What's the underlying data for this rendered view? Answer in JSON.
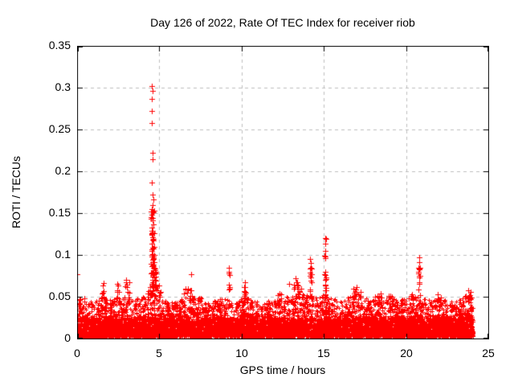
{
  "page": {
    "background": "#ffffff",
    "text_color": "#000000"
  },
  "chart_data": {
    "type": "scatter",
    "title": "Day 126 of 2022, Rate Of TEC Index for receiver riob",
    "xlabel": "GPS time / hours",
    "ylabel": "ROTI / TECUs",
    "xlim": [
      0,
      25
    ],
    "ylim": [
      0,
      0.35
    ],
    "xticks": [
      0,
      5,
      10,
      15,
      20,
      25
    ],
    "xtick_labels": [
      "0",
      "5",
      "10",
      "15",
      "20",
      "25"
    ],
    "yticks": [
      0,
      0.05,
      0.1,
      0.15,
      0.2,
      0.25,
      0.3,
      0.35
    ],
    "ytick_labels": [
      "0",
      "0.05",
      "0.1",
      "0.15",
      "0.2",
      "0.25",
      "0.3",
      "0.35"
    ],
    "grid": {
      "show": true,
      "color": "#bebebe",
      "dash": [
        4,
        4
      ]
    },
    "border_color": "#000000",
    "marker": {
      "shape": "plus",
      "color": "#ff0000"
    },
    "data_x_range": [
      0,
      24.1
    ],
    "seed": 20220126,
    "baseline_band": {
      "count": 6500,
      "y_min": 0.003,
      "shape_power": 2.6,
      "core_count": 3200,
      "core_y_base": 0.005,
      "core_y_spread": 0.02,
      "core_power": 1.4
    },
    "band_profile": [
      [
        0,
        0.042
      ],
      [
        0.5,
        0.046
      ],
      [
        1,
        0.043
      ],
      [
        1.5,
        0.05
      ],
      [
        2,
        0.046
      ],
      [
        2.5,
        0.049
      ],
      [
        3,
        0.05
      ],
      [
        3.5,
        0.047
      ],
      [
        4,
        0.05
      ],
      [
        4.5,
        0.058
      ],
      [
        5,
        0.05
      ],
      [
        5.5,
        0.044
      ],
      [
        6,
        0.046
      ],
      [
        6.5,
        0.05
      ],
      [
        7,
        0.051
      ],
      [
        7.5,
        0.05
      ],
      [
        8,
        0.044
      ],
      [
        8.5,
        0.046
      ],
      [
        9,
        0.05
      ],
      [
        9.5,
        0.046
      ],
      [
        10,
        0.048
      ],
      [
        10.5,
        0.05
      ],
      [
        11,
        0.044
      ],
      [
        11.5,
        0.046
      ],
      [
        12,
        0.045
      ],
      [
        12.5,
        0.048
      ],
      [
        13,
        0.052
      ],
      [
        13.5,
        0.054
      ],
      [
        14,
        0.052
      ],
      [
        14.5,
        0.049
      ],
      [
        15,
        0.053
      ],
      [
        15.5,
        0.048
      ],
      [
        16,
        0.046
      ],
      [
        16.5,
        0.05
      ],
      [
        17,
        0.054
      ],
      [
        17.5,
        0.05
      ],
      [
        18,
        0.048
      ],
      [
        18.5,
        0.05
      ],
      [
        19,
        0.049
      ],
      [
        19.5,
        0.046
      ],
      [
        20,
        0.048
      ],
      [
        20.5,
        0.05
      ],
      [
        21,
        0.049
      ],
      [
        21.5,
        0.046
      ],
      [
        22,
        0.049
      ],
      [
        22.5,
        0.046
      ],
      [
        23,
        0.044
      ],
      [
        23.5,
        0.049
      ],
      [
        24,
        0.052
      ],
      [
        24.1,
        0.05
      ]
    ],
    "clusters": [
      {
        "x": 4.62,
        "sx": 0.2,
        "y0": 0.05,
        "y1": 0.085,
        "n": 40
      },
      {
        "x": 4.6,
        "sx": 0.1,
        "y0": 0.085,
        "y1": 0.155,
        "n": 25
      },
      {
        "x": 15.1,
        "sx": 0.06,
        "y0": 0.05,
        "y1": 0.1,
        "n": 14
      },
      {
        "x": 14.2,
        "sx": 0.06,
        "y0": 0.05,
        "y1": 0.085,
        "n": 12
      },
      {
        "x": 20.8,
        "sx": 0.05,
        "y0": 0.05,
        "y1": 0.09,
        "n": 10
      },
      {
        "x": 13.35,
        "sx": 0.18,
        "y0": 0.048,
        "y1": 0.068,
        "n": 14
      },
      {
        "x": 10.2,
        "sx": 0.08,
        "y0": 0.048,
        "y1": 0.064,
        "n": 8
      },
      {
        "x": 9.25,
        "sx": 0.06,
        "y0": 0.05,
        "y1": 0.082,
        "n": 7
      },
      {
        "x": 6.8,
        "sx": 0.35,
        "y0": 0.046,
        "y1": 0.06,
        "n": 14
      },
      {
        "x": 3.0,
        "sx": 0.2,
        "y0": 0.046,
        "y1": 0.068,
        "n": 10
      },
      {
        "x": 1.6,
        "sx": 0.15,
        "y0": 0.045,
        "y1": 0.064,
        "n": 8
      },
      {
        "x": 2.45,
        "sx": 0.1,
        "y0": 0.045,
        "y1": 0.065,
        "n": 6
      },
      {
        "x": 17.0,
        "sx": 0.25,
        "y0": 0.046,
        "y1": 0.06,
        "n": 12
      },
      {
        "x": 22.0,
        "sx": 0.12,
        "y0": 0.045,
        "y1": 0.057,
        "n": 7
      },
      {
        "x": 23.85,
        "sx": 0.25,
        "y0": 0.044,
        "y1": 0.058,
        "n": 12
      },
      {
        "x": 12.3,
        "sx": 0.15,
        "y0": 0.044,
        "y1": 0.054,
        "n": 6
      },
      {
        "x": 18.3,
        "sx": 0.2,
        "y0": 0.044,
        "y1": 0.055,
        "n": 8
      },
      {
        "x": 19.0,
        "sx": 0.15,
        "y0": 0.044,
        "y1": 0.052,
        "n": 6
      },
      {
        "x": 20.3,
        "sx": 0.15,
        "y0": 0.044,
        "y1": 0.054,
        "n": 6
      },
      {
        "x": 0.3,
        "sx": 0.2,
        "y0": 0.042,
        "y1": 0.05,
        "n": 5
      },
      {
        "x": 5.0,
        "sx": 0.1,
        "y0": 0.05,
        "y1": 0.065,
        "n": 6
      }
    ],
    "outliers": [
      [
        4.55,
        0.302
      ],
      [
        4.58,
        0.296
      ],
      [
        4.55,
        0.287
      ],
      [
        4.52,
        0.272
      ],
      [
        4.53,
        0.258
      ],
      [
        4.57,
        0.222
      ],
      [
        4.58,
        0.214
      ],
      [
        4.52,
        0.187
      ],
      [
        4.6,
        0.172
      ],
      [
        4.62,
        0.166
      ],
      [
        4.58,
        0.16
      ],
      [
        4.55,
        0.155
      ],
      [
        4.62,
        0.151
      ],
      [
        4.55,
        0.148
      ],
      [
        4.5,
        0.145
      ],
      [
        4.58,
        0.141
      ],
      [
        4.63,
        0.137
      ],
      [
        4.55,
        0.133
      ],
      [
        4.6,
        0.129
      ],
      [
        4.52,
        0.125
      ],
      [
        4.57,
        0.121
      ],
      [
        4.62,
        0.117
      ],
      [
        4.55,
        0.113
      ],
      [
        4.6,
        0.109
      ],
      [
        4.53,
        0.105
      ],
      [
        4.58,
        0.101
      ],
      [
        4.65,
        0.098
      ],
      [
        4.6,
        0.094
      ],
      [
        4.68,
        0.091
      ],
      [
        4.62,
        0.088
      ],
      [
        4.7,
        0.085
      ],
      [
        4.65,
        0.082
      ],
      [
        4.72,
        0.079
      ],
      [
        4.6,
        0.076
      ],
      [
        4.68,
        0.073
      ],
      [
        4.75,
        0.07
      ],
      [
        4.65,
        0.067
      ],
      [
        4.78,
        0.064
      ],
      [
        4.85,
        0.061
      ],
      [
        4.9,
        0.058
      ],
      [
        4.42,
        0.062
      ],
      [
        4.35,
        0.057
      ],
      [
        4.3,
        0.054
      ],
      [
        0.02,
        0.077
      ],
      [
        6.95,
        0.077
      ],
      [
        9.22,
        0.085
      ],
      [
        9.25,
        0.08
      ],
      [
        9.27,
        0.076
      ],
      [
        10.2,
        0.067
      ],
      [
        10.22,
        0.062
      ],
      [
        13.3,
        0.072
      ],
      [
        13.35,
        0.067
      ],
      [
        13.25,
        0.062
      ],
      [
        12.9,
        0.065
      ],
      [
        13.6,
        0.06
      ],
      [
        14.18,
        0.095
      ],
      [
        14.2,
        0.09
      ],
      [
        14.22,
        0.085
      ],
      [
        14.17,
        0.079
      ],
      [
        14.2,
        0.073
      ],
      [
        14.24,
        0.067
      ],
      [
        15.08,
        0.12
      ],
      [
        15.12,
        0.119
      ],
      [
        15.1,
        0.113
      ],
      [
        15.11,
        0.105
      ],
      [
        15.09,
        0.096
      ],
      [
        15.1,
        0.08
      ],
      [
        15.12,
        0.071
      ],
      [
        15.08,
        0.064
      ],
      [
        20.78,
        0.097
      ],
      [
        20.8,
        0.091
      ],
      [
        20.79,
        0.083
      ],
      [
        20.81,
        0.073
      ],
      [
        20.8,
        0.067
      ],
      [
        20.77,
        0.059
      ],
      [
        1.6,
        0.066
      ],
      [
        3.0,
        0.07
      ],
      [
        3.05,
        0.064
      ],
      [
        2.45,
        0.065
      ],
      [
        17.0,
        0.062
      ],
      [
        23.8,
        0.058
      ]
    ]
  }
}
